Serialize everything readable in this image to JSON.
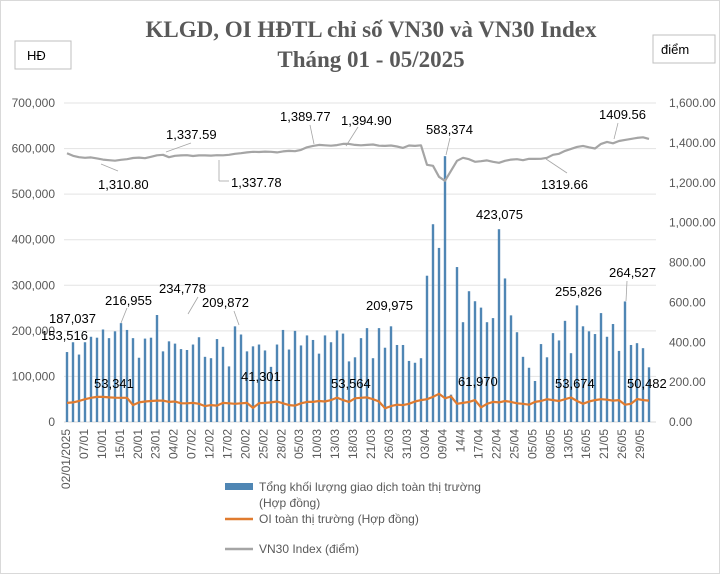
{
  "chart_data": {
    "type": "bar+line",
    "title": [
      "KLGD, OI HĐTL chỉ số VN30 và VN30 Index",
      "Tháng 01 - 05/2025"
    ],
    "y_left_unit": "HĐ",
    "y_right_unit": "điểm",
    "y_left_ticks": [
      "0",
      "100,000",
      "200,000",
      "300,000",
      "400,000",
      "500,000",
      "600,000",
      "700,000"
    ],
    "y_right_ticks": [
      "0.00",
      "200.00",
      "400.00",
      "600.00",
      "800.00",
      "1,000.00",
      "1,200.00",
      "1,400.00",
      "1,600.00"
    ],
    "ylim_left": [
      0,
      700000
    ],
    "ylim_right": [
      0,
      1600
    ],
    "grid": true,
    "x_tick_labels": [
      "02/01/2025",
      "07/01",
      "10/01",
      "15/01",
      "20/01",
      "23/01",
      "04/02",
      "07/02",
      "12/02",
      "17/02",
      "20/02",
      "25/02",
      "28/02",
      "05/03",
      "10/03",
      "13/03",
      "18/03",
      "21/03",
      "26/03",
      "31/03",
      "03/04",
      "09/04",
      "14/4",
      "17/04",
      "22/04",
      "25/04",
      "05/05",
      "08/05",
      "13/05",
      "16/05",
      "21/05",
      "26/05",
      "29/05"
    ],
    "series": [
      {
        "name": "Tổng khối lượng giao dịch toàn thị trường (Hợp đồng)",
        "type": "bar",
        "axis": "left",
        "color": "#4f86b4",
        "values": [
          153516,
          175000,
          148000,
          175000,
          187037,
          185000,
          203000,
          184000,
          199000,
          216955,
          202000,
          184000,
          141000,
          183000,
          185000,
          234778,
          155000,
          177000,
          172000,
          160000,
          158000,
          170000,
          186000,
          143000,
          140000,
          182000,
          165000,
          122000,
          209872,
          192000,
          155000,
          166000,
          170000,
          157000,
          121000,
          170000,
          202000,
          159000,
          200000,
          168000,
          190000,
          180000,
          150000,
          190000,
          175000,
          201000,
          194000,
          133000,
          142000,
          184000,
          206000,
          140000,
          206000,
          163000,
          209975,
          169000,
          169000,
          134000,
          130000,
          140000,
          321000,
          434000,
          382000,
          583374,
          60000,
          340000,
          219000,
          287000,
          265000,
          251000,
          219000,
          228000,
          423075,
          315000,
          234000,
          197000,
          143000,
          119000,
          90000,
          171000,
          142000,
          195000,
          179000,
          222000,
          151000,
          255826,
          210000,
          199000,
          193000,
          239000,
          187000,
          215000,
          156000,
          264527,
          169000,
          173000,
          162000,
          120000
        ]
      },
      {
        "name": "OI toàn thị trường (Hợp đồng)",
        "type": "line",
        "axis": "left",
        "color": "#e07b2f",
        "values": [
          42000,
          43000,
          46000,
          50000,
          53000,
          55000,
          55000,
          54000,
          53341,
          53000,
          53000,
          37000,
          43000,
          45000,
          46000,
          47000,
          47000,
          44000,
          45000,
          41000,
          41000,
          42000,
          40000,
          35000,
          37000,
          36000,
          42000,
          41000,
          40000,
          41000,
          42000,
          31000,
          41301,
          42000,
          43000,
          45000,
          41000,
          37000,
          36000,
          41000,
          44000,
          44000,
          46000,
          45000,
          48000,
          53564,
          48000,
          44000,
          52000,
          53000,
          54000,
          50000,
          45000,
          30000,
          35000,
          38000,
          37000,
          40000,
          45000,
          48000,
          50000,
          55000,
          61970,
          52000,
          56000,
          40000,
          42000,
          44000,
          48000,
          32000,
          40000,
          44000,
          43000,
          46000,
          44000,
          41000,
          40000,
          38000,
          44000,
          46000,
          50000,
          48000,
          46000,
          50000,
          53674,
          46000,
          40000,
          45000,
          48000,
          50000,
          49000,
          47000,
          48000,
          38000,
          40000,
          50482,
          48000,
          47000
        ]
      },
      {
        "name": "VN30 Index (điểm)",
        "type": "line",
        "axis": "right",
        "color": "#a5a5a5",
        "values": [
          1348,
          1335,
          1328,
          1325,
          1327,
          1322,
          1316,
          1313,
          1310.8,
          1315,
          1318,
          1324,
          1326,
          1323,
          1330,
          1337.59,
          1340,
          1328,
          1335,
          1337,
          1338,
          1334,
          1337,
          1337,
          1336,
          1338,
          1337.78,
          1340,
          1345,
          1348,
          1352,
          1355,
          1354,
          1356,
          1355,
          1352,
          1357,
          1360,
          1358,
          1365,
          1378,
          1385,
          1389.77,
          1388,
          1386,
          1389,
          1394.9,
          1395,
          1390,
          1388,
          1390,
          1392,
          1386,
          1385,
          1387,
          1382,
          1375,
          1387,
          1385,
          1388,
          1290,
          1285,
          1230,
          1210,
          1260,
          1310,
          1325,
          1318,
          1305,
          1308,
          1312,
          1305,
          1300,
          1310,
          1316,
          1318,
          1313,
          1320,
          1319.66,
          1320,
          1325,
          1340,
          1345,
          1360,
          1370,
          1380,
          1385,
          1378,
          1372,
          1395,
          1405,
          1398,
          1409.56,
          1415,
          1420,
          1425,
          1428,
          1420
        ]
      }
    ],
    "data_labels": {
      "bars": [
        "153,516",
        "187,037",
        "216,955",
        "234,778",
        "209,872",
        "209,975",
        "583,374",
        "423,075",
        "255,826",
        "264,527"
      ],
      "oi": [
        "53,341",
        "41,301",
        "53,564",
        "61,970",
        "53,674",
        "50,482"
      ],
      "vn30": [
        "1,310.80",
        "1,337.59",
        "1,337.78",
        "1,389.77",
        "1,394.90",
        "1409.56",
        "1319.66"
      ]
    },
    "legend": {
      "placement": "bottom",
      "items": [
        {
          "line1": "Tổng khối lượng giao dịch toàn thị trường",
          "line2": "(Hợp đồng)",
          "color": "#4f86b4"
        },
        {
          "line1": "OI toàn thị trường (Hợp đồng)",
          "color": "#e07b2f"
        },
        {
          "line1": "VN30 Index (điểm)",
          "color": "#a5a5a5"
        }
      ]
    }
  }
}
